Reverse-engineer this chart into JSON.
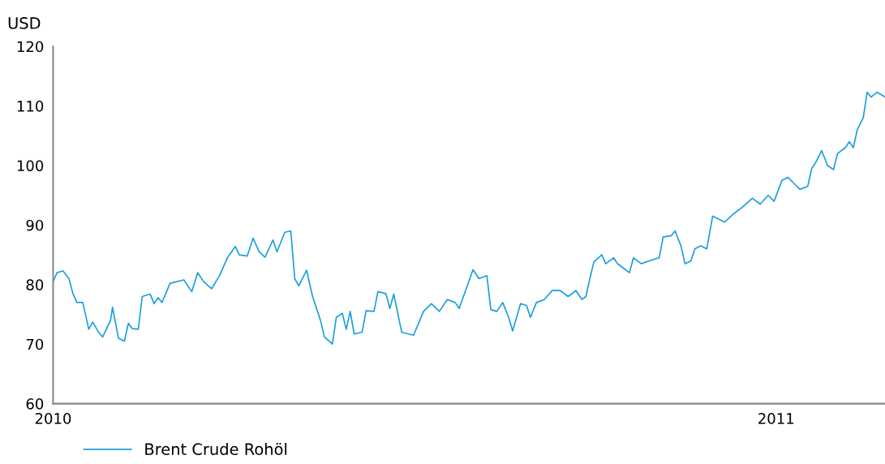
{
  "chart_data": {
    "type": "line",
    "ylabel": "USD",
    "legend": "bottom left",
    "grid": false,
    "x": [
      "2010-01-01",
      "2010-01-03",
      "2010-01-06",
      "2010-01-09",
      "2010-01-11",
      "2010-01-13",
      "2010-01-16",
      "2010-01-19",
      "2010-01-21",
      "2010-01-24",
      "2010-01-26",
      "2010-01-30",
      "2010-01-31",
      "2010-02-03",
      "2010-02-06",
      "2010-02-08",
      "2010-02-10",
      "2010-02-13",
      "2010-02-15",
      "2010-02-19",
      "2010-02-21",
      "2010-02-23",
      "2010-02-25",
      "2010-03-01",
      "2010-03-08",
      "2010-03-12",
      "2010-03-15",
      "2010-03-18",
      "2010-03-22",
      "2010-03-26",
      "2010-03-30",
      "2010-04-03",
      "2010-04-05",
      "2010-04-09",
      "2010-04-12",
      "2010-04-15",
      "2010-04-18",
      "2010-04-22",
      "2010-04-24",
      "2010-04-28",
      "2010-05-01",
      "2010-05-03",
      "2010-05-05",
      "2010-05-09",
      "2010-05-12",
      "2010-05-16",
      "2010-05-18",
      "2010-05-22",
      "2010-05-24",
      "2010-05-27",
      "2010-05-29",
      "2010-05-31",
      "2010-06-02",
      "2010-06-06",
      "2010-06-08",
      "2010-06-12",
      "2010-06-14",
      "2010-06-18",
      "2010-06-20",
      "2010-06-22",
      "2010-06-26",
      "2010-07-02",
      "2010-07-07",
      "2010-07-11",
      "2010-07-15",
      "2010-07-19",
      "2010-07-23",
      "2010-07-25",
      "2010-08-01",
      "2010-08-04",
      "2010-08-08",
      "2010-08-10",
      "2010-08-13",
      "2010-08-16",
      "2010-08-19",
      "2010-08-21",
      "2010-08-25",
      "2010-08-28",
      "2010-08-30",
      "2010-09-02",
      "2010-09-06",
      "2010-09-10",
      "2010-09-14",
      "2010-09-18",
      "2010-09-22",
      "2010-09-25",
      "2010-09-27",
      "2010-09-29",
      "2010-10-01",
      "2010-10-05",
      "2010-10-07",
      "2010-10-11",
      "2010-10-13",
      "2010-10-17",
      "2010-10-19",
      "2010-10-21",
      "2010-10-25",
      "2010-10-29",
      "2010-11-03",
      "2010-11-05",
      "2010-11-09",
      "2010-11-11",
      "2010-11-14",
      "2010-11-16",
      "2010-11-19",
      "2010-11-21",
      "2010-11-24",
      "2010-11-27",
      "2010-11-30",
      "2010-12-03",
      "2010-12-06",
      "2010-12-11",
      "2010-12-15",
      "2010-12-20",
      "2010-12-24",
      "2010-12-28",
      "2010-12-31",
      "2011-01-04",
      "2011-01-07",
      "2011-01-10",
      "2011-01-13",
      "2011-01-17",
      "2011-01-19",
      "2011-01-21",
      "2011-01-24",
      "2011-01-27",
      "2011-01-30",
      "2011-02-01",
      "2011-02-05",
      "2011-02-07",
      "2011-02-09",
      "2011-02-11",
      "2011-02-14",
      "2011-02-16",
      "2011-02-18",
      "2011-02-21",
      "2011-02-25"
    ],
    "series": [
      {
        "name": "Brent Crude Rohöl",
        "color": "#1a9fdb",
        "values": [
          80.5,
          82,
          82.3,
          81,
          78.5,
          77,
          77,
          72.5,
          73.7,
          72,
          71.2,
          74,
          76.2,
          71,
          70.5,
          73.5,
          72.6,
          72.5,
          78,
          78.4,
          76.8,
          77.8,
          77,
          80.2,
          80.8,
          78.8,
          82,
          80.5,
          79.3,
          81.5,
          84.5,
          86.4,
          85,
          84.8,
          87.8,
          85.5,
          84.6,
          87.5,
          85.5,
          88.8,
          89,
          81,
          79.8,
          82.4,
          78,
          74,
          71.2,
          70,
          74.5,
          75.2,
          72.5,
          75.5,
          71.7,
          72,
          75.6,
          75.5,
          78.8,
          78.5,
          76,
          78.4,
          72,
          71.5,
          75.5,
          76.8,
          75.5,
          77.5,
          77,
          76,
          82.5,
          81,
          81.5,
          75.8,
          75.5,
          77,
          74.5,
          72.2,
          76.8,
          76.5,
          74.5,
          77,
          77.5,
          79,
          79,
          78,
          79,
          77.5,
          78,
          81,
          83.8,
          85,
          83.5,
          84.5,
          83.5,
          82.5,
          82,
          84.5,
          83.5,
          84,
          84.5,
          88,
          88.2,
          89,
          86.5,
          83.5,
          84,
          86,
          86.5,
          86,
          91.5,
          91,
          90.5,
          92,
          93,
          94.5,
          93.5,
          95,
          94,
          97.5,
          98,
          97,
          96,
          96.5,
          99.5,
          100.5,
          102.5,
          100,
          99.3,
          102,
          103,
          104,
          103,
          106,
          108,
          112.3,
          111.5,
          112.3,
          111.5
        ]
      }
    ],
    "xlim": [
      "2010-01-01",
      "2011-02-25"
    ],
    "xticks": [
      {
        "value": "2010-01-01",
        "label": "2010"
      },
      {
        "value": "2011-01-01",
        "label": "2011"
      }
    ],
    "ylim": [
      60,
      120
    ],
    "yticks": [
      60,
      70,
      80,
      90,
      100,
      110,
      120
    ],
    "marker": "none",
    "line_style": "solid"
  }
}
